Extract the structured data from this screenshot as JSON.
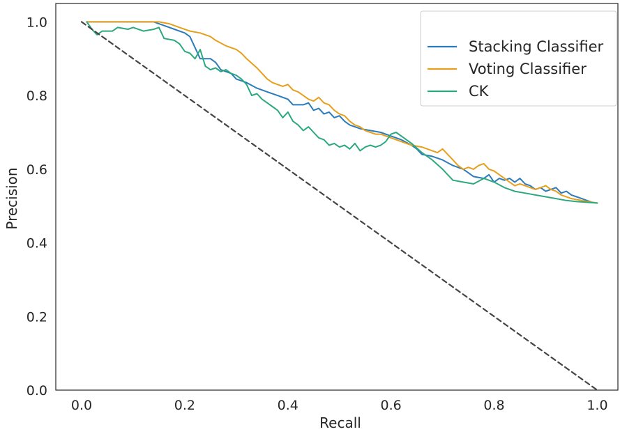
{
  "chart_data": {
    "type": "line",
    "title": "",
    "xlabel": "Recall",
    "ylabel": "Precision",
    "xlim": [
      -0.05,
      1.04
    ],
    "ylim": [
      0.0,
      1.05
    ],
    "x_ticks": [
      0.0,
      0.2,
      0.4,
      0.6,
      0.8,
      1.0
    ],
    "x_tick_labels": [
      "0.0",
      "0.2",
      "0.4",
      "0.6",
      "0.8",
      "1.0"
    ],
    "y_ticks": [
      0.0,
      0.2,
      0.4,
      0.6,
      0.8,
      1.0
    ],
    "y_tick_labels": [
      "0.0",
      "0.2",
      "0.4",
      "0.6",
      "0.8",
      "1.0"
    ],
    "grid": false,
    "legend_position": "top-right",
    "series": [
      {
        "name": "Stacking Classifier",
        "color": "#2b7bba",
        "style": "solid",
        "points": [
          [
            0.01,
            1.0
          ],
          [
            0.05,
            1.0
          ],
          [
            0.1,
            1.0
          ],
          [
            0.14,
            1.0
          ],
          [
            0.16,
            0.99
          ],
          [
            0.18,
            0.98
          ],
          [
            0.2,
            0.97
          ],
          [
            0.21,
            0.96
          ],
          [
            0.22,
            0.93
          ],
          [
            0.23,
            0.9
          ],
          [
            0.25,
            0.9
          ],
          [
            0.26,
            0.89
          ],
          [
            0.27,
            0.87
          ],
          [
            0.29,
            0.86
          ],
          [
            0.3,
            0.845
          ],
          [
            0.32,
            0.835
          ],
          [
            0.34,
            0.82
          ],
          [
            0.36,
            0.81
          ],
          [
            0.38,
            0.8
          ],
          [
            0.4,
            0.79
          ],
          [
            0.41,
            0.775
          ],
          [
            0.43,
            0.775
          ],
          [
            0.44,
            0.78
          ],
          [
            0.45,
            0.76
          ],
          [
            0.46,
            0.765
          ],
          [
            0.47,
            0.75
          ],
          [
            0.48,
            0.755
          ],
          [
            0.49,
            0.74
          ],
          [
            0.5,
            0.745
          ],
          [
            0.51,
            0.73
          ],
          [
            0.52,
            0.72
          ],
          [
            0.54,
            0.71
          ],
          [
            0.56,
            0.705
          ],
          [
            0.58,
            0.7
          ],
          [
            0.6,
            0.69
          ],
          [
            0.62,
            0.68
          ],
          [
            0.64,
            0.665
          ],
          [
            0.65,
            0.655
          ],
          [
            0.66,
            0.64
          ],
          [
            0.68,
            0.635
          ],
          [
            0.7,
            0.625
          ],
          [
            0.72,
            0.61
          ],
          [
            0.74,
            0.6
          ],
          [
            0.75,
            0.59
          ],
          [
            0.76,
            0.58
          ],
          [
            0.78,
            0.575
          ],
          [
            0.79,
            0.585
          ],
          [
            0.8,
            0.565
          ],
          [
            0.81,
            0.575
          ],
          [
            0.82,
            0.57
          ],
          [
            0.83,
            0.575
          ],
          [
            0.84,
            0.565
          ],
          [
            0.85,
            0.575
          ],
          [
            0.86,
            0.56
          ],
          [
            0.87,
            0.555
          ],
          [
            0.88,
            0.545
          ],
          [
            0.89,
            0.55
          ],
          [
            0.9,
            0.54
          ],
          [
            0.91,
            0.545
          ],
          [
            0.92,
            0.55
          ],
          [
            0.93,
            0.535
          ],
          [
            0.94,
            0.54
          ],
          [
            0.95,
            0.53
          ],
          [
            0.96,
            0.525
          ],
          [
            0.97,
            0.52
          ],
          [
            0.98,
            0.515
          ],
          [
            0.99,
            0.51
          ],
          [
            1.0,
            0.508
          ]
        ]
      },
      {
        "name": "Voting Classifier",
        "color": "#e69f1c",
        "style": "solid",
        "points": [
          [
            0.01,
            1.0
          ],
          [
            0.05,
            1.0
          ],
          [
            0.1,
            1.0
          ],
          [
            0.15,
            1.0
          ],
          [
            0.17,
            0.995
          ],
          [
            0.19,
            0.985
          ],
          [
            0.21,
            0.975
          ],
          [
            0.23,
            0.97
          ],
          [
            0.25,
            0.96
          ],
          [
            0.26,
            0.95
          ],
          [
            0.28,
            0.935
          ],
          [
            0.3,
            0.925
          ],
          [
            0.31,
            0.915
          ],
          [
            0.32,
            0.9
          ],
          [
            0.34,
            0.875
          ],
          [
            0.35,
            0.86
          ],
          [
            0.36,
            0.845
          ],
          [
            0.37,
            0.835
          ],
          [
            0.38,
            0.83
          ],
          [
            0.39,
            0.825
          ],
          [
            0.4,
            0.83
          ],
          [
            0.41,
            0.815
          ],
          [
            0.42,
            0.81
          ],
          [
            0.43,
            0.8
          ],
          [
            0.44,
            0.79
          ],
          [
            0.45,
            0.785
          ],
          [
            0.46,
            0.795
          ],
          [
            0.47,
            0.78
          ],
          [
            0.48,
            0.775
          ],
          [
            0.49,
            0.76
          ],
          [
            0.5,
            0.75
          ],
          [
            0.51,
            0.745
          ],
          [
            0.52,
            0.73
          ],
          [
            0.53,
            0.72
          ],
          [
            0.54,
            0.715
          ],
          [
            0.55,
            0.705
          ],
          [
            0.56,
            0.7
          ],
          [
            0.57,
            0.695
          ],
          [
            0.58,
            0.695
          ],
          [
            0.6,
            0.685
          ],
          [
            0.62,
            0.675
          ],
          [
            0.64,
            0.665
          ],
          [
            0.66,
            0.66
          ],
          [
            0.68,
            0.65
          ],
          [
            0.69,
            0.645
          ],
          [
            0.7,
            0.655
          ],
          [
            0.71,
            0.64
          ],
          [
            0.72,
            0.625
          ],
          [
            0.73,
            0.61
          ],
          [
            0.74,
            0.6
          ],
          [
            0.75,
            0.605
          ],
          [
            0.76,
            0.6
          ],
          [
            0.77,
            0.61
          ],
          [
            0.78,
            0.615
          ],
          [
            0.79,
            0.6
          ],
          [
            0.8,
            0.595
          ],
          [
            0.81,
            0.585
          ],
          [
            0.82,
            0.575
          ],
          [
            0.83,
            0.565
          ],
          [
            0.84,
            0.555
          ],
          [
            0.85,
            0.56
          ],
          [
            0.86,
            0.555
          ],
          [
            0.87,
            0.55
          ],
          [
            0.88,
            0.545
          ],
          [
            0.89,
            0.55
          ],
          [
            0.9,
            0.555
          ],
          [
            0.91,
            0.545
          ],
          [
            0.92,
            0.54
          ],
          [
            0.93,
            0.53
          ],
          [
            0.95,
            0.52
          ],
          [
            0.97,
            0.515
          ],
          [
            0.99,
            0.51
          ],
          [
            1.0,
            0.508
          ]
        ]
      },
      {
        "name": "CK",
        "color": "#2ca97c",
        "style": "solid",
        "points": [
          [
            0.01,
            1.0
          ],
          [
            0.02,
            0.98
          ],
          [
            0.03,
            0.965
          ],
          [
            0.04,
            0.975
          ],
          [
            0.06,
            0.975
          ],
          [
            0.07,
            0.985
          ],
          [
            0.09,
            0.98
          ],
          [
            0.1,
            0.985
          ],
          [
            0.12,
            0.975
          ],
          [
            0.14,
            0.98
          ],
          [
            0.15,
            0.985
          ],
          [
            0.16,
            0.955
          ],
          [
            0.18,
            0.95
          ],
          [
            0.19,
            0.94
          ],
          [
            0.2,
            0.92
          ],
          [
            0.21,
            0.915
          ],
          [
            0.22,
            0.9
          ],
          [
            0.23,
            0.925
          ],
          [
            0.24,
            0.88
          ],
          [
            0.25,
            0.87
          ],
          [
            0.26,
            0.875
          ],
          [
            0.27,
            0.865
          ],
          [
            0.28,
            0.87
          ],
          [
            0.29,
            0.86
          ],
          [
            0.3,
            0.855
          ],
          [
            0.31,
            0.845
          ],
          [
            0.32,
            0.83
          ],
          [
            0.33,
            0.8
          ],
          [
            0.34,
            0.805
          ],
          [
            0.35,
            0.79
          ],
          [
            0.36,
            0.78
          ],
          [
            0.37,
            0.77
          ],
          [
            0.38,
            0.76
          ],
          [
            0.39,
            0.74
          ],
          [
            0.4,
            0.755
          ],
          [
            0.41,
            0.73
          ],
          [
            0.42,
            0.72
          ],
          [
            0.43,
            0.705
          ],
          [
            0.44,
            0.715
          ],
          [
            0.45,
            0.7
          ],
          [
            0.46,
            0.685
          ],
          [
            0.47,
            0.68
          ],
          [
            0.48,
            0.665
          ],
          [
            0.49,
            0.67
          ],
          [
            0.5,
            0.66
          ],
          [
            0.51,
            0.665
          ],
          [
            0.52,
            0.655
          ],
          [
            0.53,
            0.67
          ],
          [
            0.54,
            0.65
          ],
          [
            0.55,
            0.66
          ],
          [
            0.56,
            0.665
          ],
          [
            0.57,
            0.66
          ],
          [
            0.58,
            0.665
          ],
          [
            0.59,
            0.675
          ],
          [
            0.6,
            0.695
          ],
          [
            0.61,
            0.7
          ],
          [
            0.62,
            0.69
          ],
          [
            0.64,
            0.67
          ],
          [
            0.66,
            0.645
          ],
          [
            0.68,
            0.625
          ],
          [
            0.7,
            0.6
          ],
          [
            0.72,
            0.57
          ],
          [
            0.74,
            0.565
          ],
          [
            0.76,
            0.56
          ],
          [
            0.78,
            0.575
          ],
          [
            0.8,
            0.565
          ],
          [
            0.82,
            0.55
          ],
          [
            0.84,
            0.54
          ],
          [
            0.86,
            0.535
          ],
          [
            0.88,
            0.53
          ],
          [
            0.9,
            0.525
          ],
          [
            0.92,
            0.52
          ],
          [
            0.94,
            0.515
          ],
          [
            0.96,
            0.512
          ],
          [
            0.98,
            0.51
          ],
          [
            1.0,
            0.508
          ]
        ]
      },
      {
        "name": "",
        "color": "#444444",
        "style": "dashed",
        "points": [
          [
            0.0,
            1.0
          ],
          [
            1.0,
            0.0
          ]
        ]
      }
    ]
  }
}
